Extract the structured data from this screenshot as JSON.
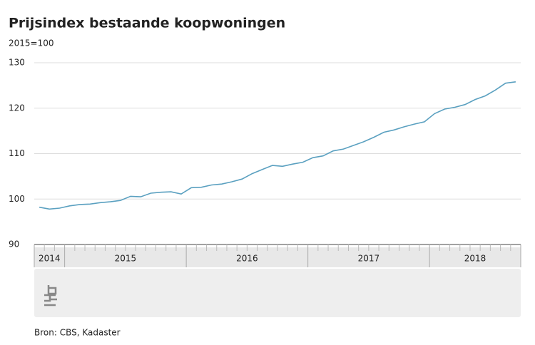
{
  "chart_data": {
    "type": "line",
    "title": "Prijsindex bestaande koopwoningen",
    "subtitle": "2015=100",
    "source": "Bron: CBS, Kadaster",
    "categories": [
      "2014",
      "2014",
      "2014",
      "2015",
      "2015",
      "2015",
      "2015",
      "2015",
      "2015",
      "2015",
      "2015",
      "2015",
      "2015",
      "2015",
      "2015",
      "2016",
      "2016",
      "2016",
      "2016",
      "2016",
      "2016",
      "2016",
      "2016",
      "2016",
      "2016",
      "2016",
      "2016",
      "2017",
      "2017",
      "2017",
      "2017",
      "2017",
      "2017",
      "2017",
      "2017",
      "2017",
      "2017",
      "2017",
      "2017",
      "2018",
      "2018",
      "2018",
      "2018",
      "2018",
      "2018",
      "2018",
      "2018",
      "2018"
    ],
    "series": [
      {
        "name": "Prijsindex",
        "color": "#5aa0c0",
        "values": [
          98.2,
          97.8,
          98.0,
          98.5,
          98.8,
          98.9,
          99.2,
          99.4,
          99.7,
          100.6,
          100.5,
          101.3,
          101.5,
          101.6,
          101.1,
          102.5,
          102.6,
          103.1,
          103.3,
          103.8,
          104.4,
          105.6,
          106.5,
          107.4,
          107.2,
          107.7,
          108.1,
          109.1,
          109.5,
          110.6,
          111.0,
          111.8,
          112.6,
          113.6,
          114.7,
          115.2,
          115.9,
          116.5,
          117.0,
          118.8,
          119.8,
          120.2,
          120.8,
          121.9,
          122.7,
          124.0,
          125.5,
          125.8
        ]
      }
    ],
    "ylim": [
      90,
      130
    ],
    "yticks": [
      90,
      100,
      110,
      120,
      130
    ],
    "grid": true
  }
}
